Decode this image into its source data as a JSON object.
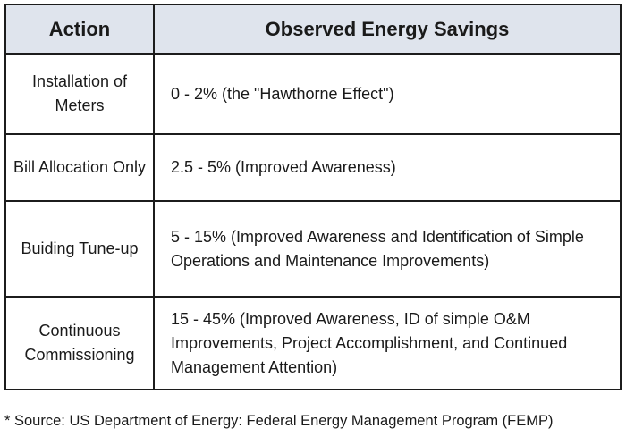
{
  "table": {
    "headers": {
      "action": "Action",
      "savings": "Observed Energy Savings"
    },
    "rows": [
      {
        "action": "Installation of Meters",
        "savings": "0 - 2% (the \"Hawthorne Effect\")"
      },
      {
        "action": "Bill Allocation Only",
        "savings": "2.5 - 5% (Improved Awareness)"
      },
      {
        "action": "Buiding Tune-up",
        "savings": "5 - 15% (Improved Awareness and Identification of Simple Operations and Maintenance Improvements)"
      },
      {
        "action": "Continuous Commissioning",
        "savings": "15 - 45% (Improved Awareness, ID of simple O&M Improvements, Project Accomplishment, and Continued Management Attention)"
      }
    ]
  },
  "footnote": "* Source: US Department of Energy: Federal Energy Management Program (FEMP)",
  "colors": {
    "header_background": "#dfe4ed",
    "border": "#1c1c1c",
    "text": "#1a1a1a"
  }
}
